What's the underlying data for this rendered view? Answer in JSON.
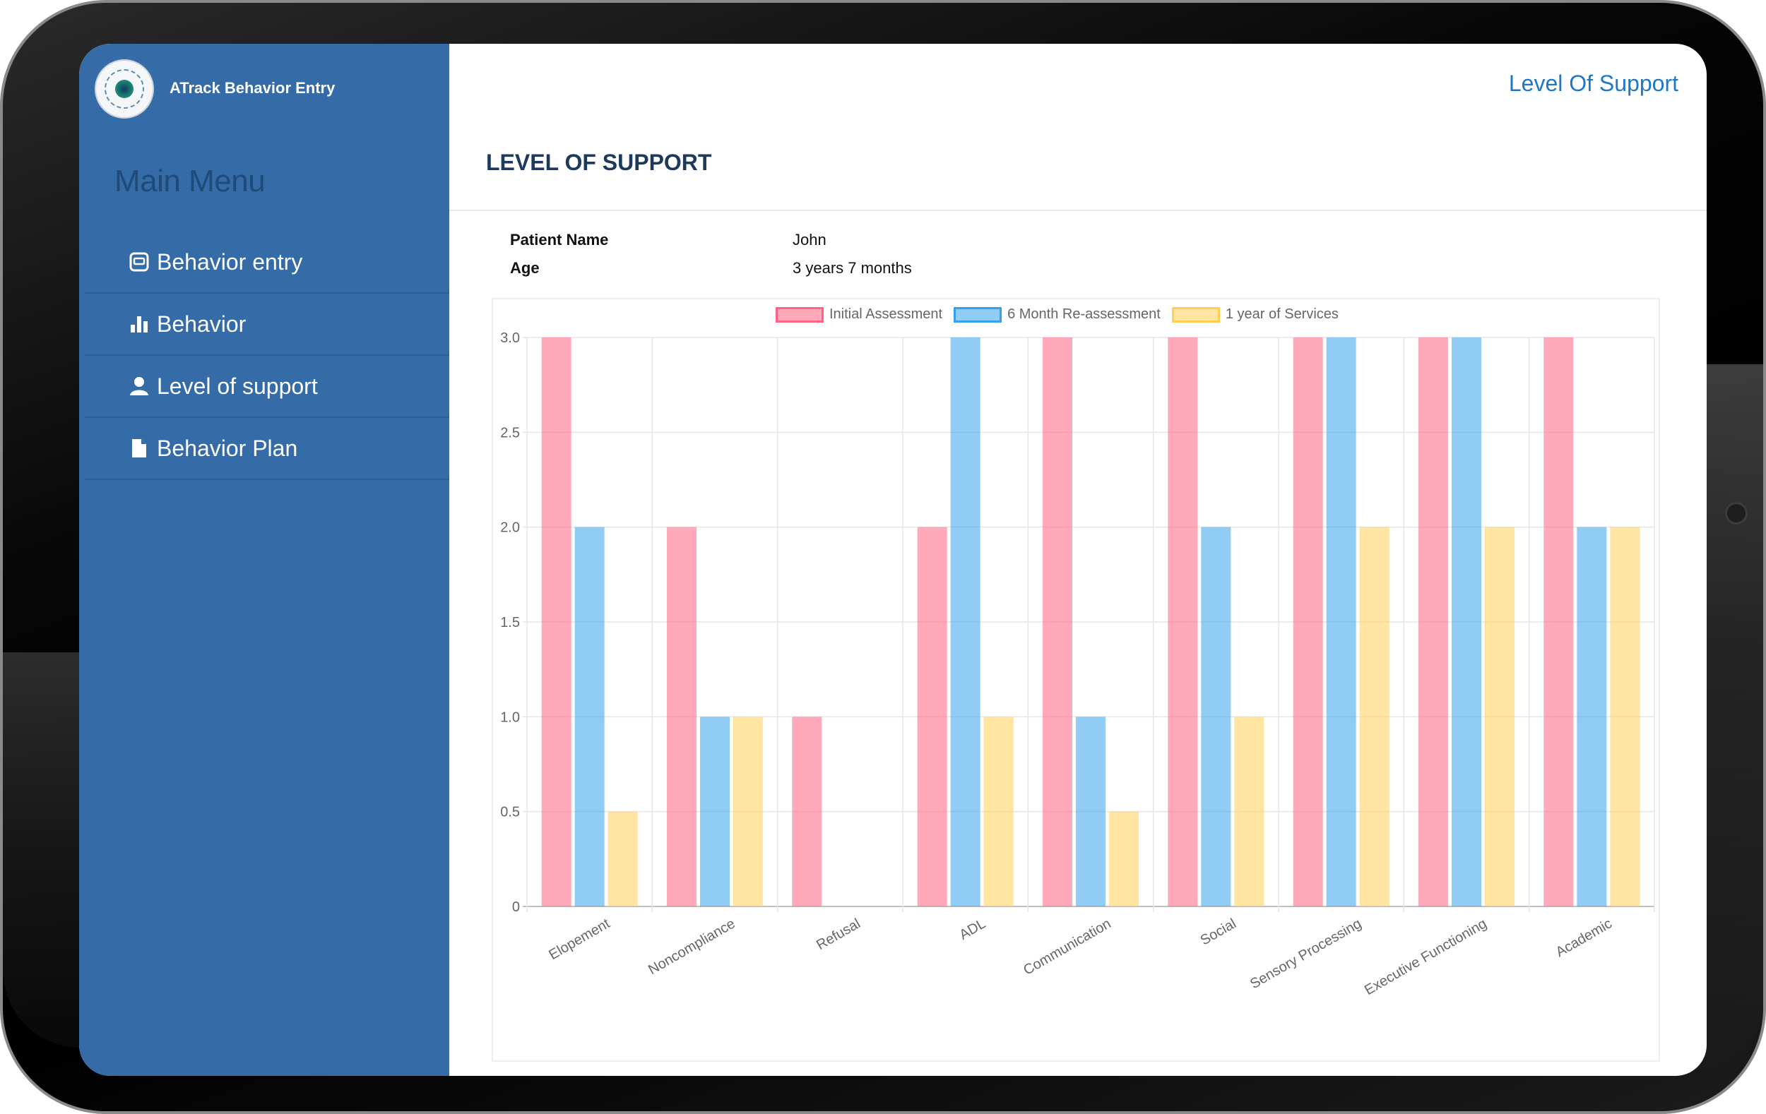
{
  "app": {
    "title": "ATrack Behavior Entry"
  },
  "sidebar": {
    "heading": "Main Menu",
    "items": [
      {
        "label": "Behavior entry",
        "icon": "entry-icon"
      },
      {
        "label": "Behavior",
        "icon": "bar-chart-icon"
      },
      {
        "label": "Level of support",
        "icon": "user-icon"
      },
      {
        "label": "Behavior Plan",
        "icon": "document-icon"
      }
    ]
  },
  "header": {
    "link_label": "Level Of Support"
  },
  "page": {
    "title": "LEVEL OF SUPPORT",
    "patient_name_label": "Patient Name",
    "patient_name": "John",
    "age_label": "Age",
    "age": "3 years 7 months"
  },
  "colors": {
    "sidebar": "#356ba6",
    "accent": "#1f78c6",
    "series": [
      "#ff6384",
      "#36a2eb",
      "#ffce56"
    ]
  },
  "chart_data": {
    "type": "bar",
    "categories": [
      "Elopement",
      "Noncompliance",
      "Refusal",
      "ADL",
      "Communication",
      "Social",
      "Sensory Processing",
      "Executive Functioning",
      "Academic"
    ],
    "series": [
      {
        "name": "Initial Assessment",
        "values": [
          3,
          2,
          1,
          2,
          3,
          3,
          3,
          3,
          3
        ]
      },
      {
        "name": "6 Month Re-assessment",
        "values": [
          2,
          1,
          0,
          3,
          1,
          2,
          3,
          3,
          2
        ]
      },
      {
        "name": "1 year of Services",
        "values": [
          0.5,
          1,
          0,
          1,
          0.5,
          1,
          2,
          2,
          2
        ]
      }
    ],
    "ylim": [
      0,
      3
    ],
    "yticks": [
      "0",
      "0.5",
      "1.0",
      "1.5",
      "2.0",
      "2.5",
      "3.0"
    ],
    "legend": "top",
    "grid": true
  }
}
